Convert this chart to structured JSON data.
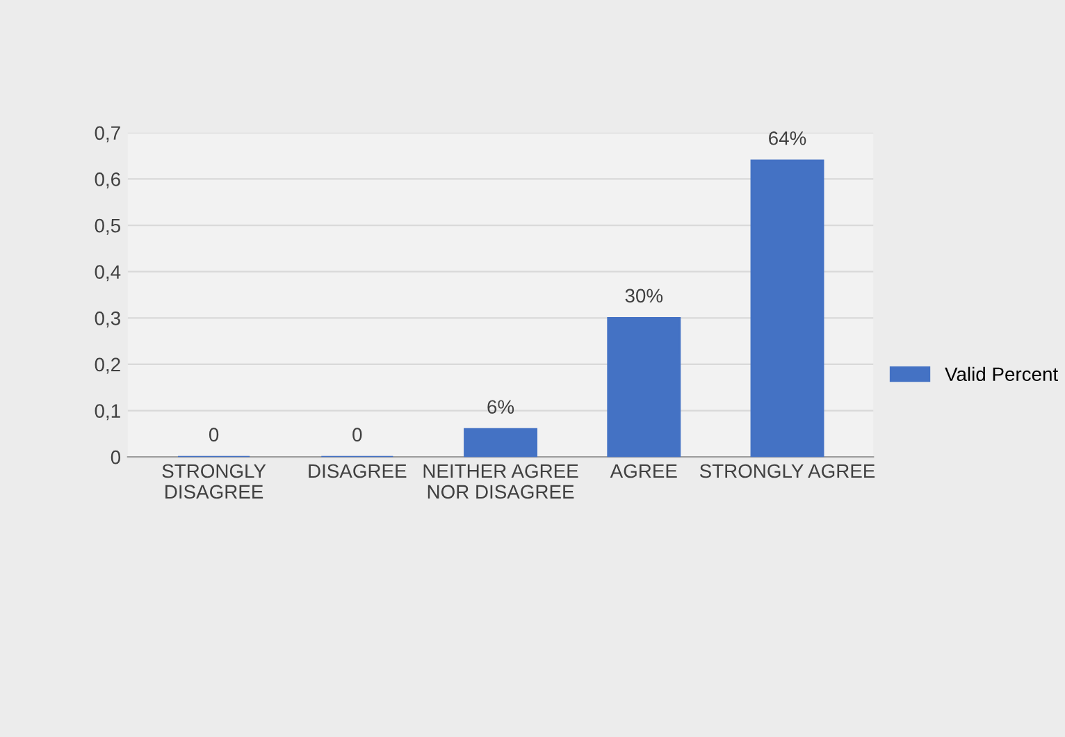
{
  "chart_data": {
    "type": "bar",
    "categories": [
      "STRONGLY DISAGREE",
      "DISAGREE",
      "NEITHER AGREE NOR DISAGREE",
      "AGREE",
      "STRONGLY AGREE"
    ],
    "series": [
      {
        "name": "Valid Percent",
        "color": "#4472c4",
        "values": [
          0,
          0,
          0.06,
          0.3,
          0.64
        ],
        "value_labels": [
          "0",
          "0",
          "6%",
          "30%",
          "64%"
        ]
      }
    ],
    "ylim": [
      0,
      0.7
    ],
    "yticks": [
      0,
      {
        "value": 0.1,
        "label": "0,1"
      },
      {
        "value": 0.2,
        "label": "0,2"
      },
      {
        "value": 0.3,
        "label": "0,3"
      },
      {
        "value": 0.4,
        "label": "0,4"
      },
      {
        "value": 0.5,
        "label": "0,5"
      },
      {
        "value": 0.6,
        "label": "0,6"
      },
      {
        "value": 0.7,
        "label": "0,7"
      }
    ],
    "grid": "y",
    "legend": "right"
  }
}
